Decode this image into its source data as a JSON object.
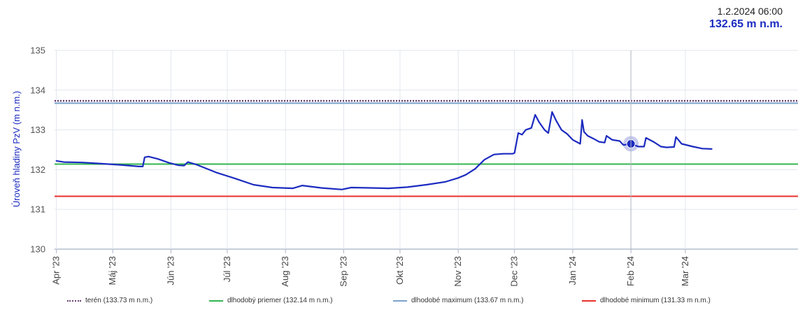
{
  "readout": {
    "date": "1.2.2024 06:00",
    "value": "132.65 m n.m."
  },
  "chart_data": {
    "type": "line",
    "title": "",
    "xlabel": "",
    "ylabel": "Úroveň hladiny PzV (m n.m.)",
    "ylim": [
      130,
      135
    ],
    "yticks": [
      130,
      131,
      132,
      133,
      134,
      135
    ],
    "xlim": [
      "2023-03-31",
      "2024-04-30"
    ],
    "x_ticks": [
      {
        "date": "2023-04-01",
        "label": "Apr '23"
      },
      {
        "date": "2023-05-01",
        "label": "Máj '23"
      },
      {
        "date": "2023-06-01",
        "label": "Jún '23"
      },
      {
        "date": "2023-07-01",
        "label": "Júl '23"
      },
      {
        "date": "2023-08-01",
        "label": "Aug '23"
      },
      {
        "date": "2023-09-01",
        "label": "Sep '23"
      },
      {
        "date": "2023-10-01",
        "label": "Okt '23"
      },
      {
        "date": "2023-11-01",
        "label": "Nov '23"
      },
      {
        "date": "2023-12-01",
        "label": "Dec '23"
      },
      {
        "date": "2024-01-01",
        "label": "Jan '24"
      },
      {
        "date": "2024-02-01",
        "label": "Feb '24"
      },
      {
        "date": "2024-03-01",
        "label": "Mar '24"
      }
    ],
    "grid": true,
    "reference_lines": [
      {
        "name": "terén (133.73 m n.m.)",
        "value": 133.73,
        "color": "#6a3f72",
        "style": "dotted"
      },
      {
        "name": "dlhodobý priemer (132.14 m n.m.)",
        "value": 132.14,
        "color": "#33b54f",
        "style": "solid"
      },
      {
        "name": "dlhodobé maximum (133.67 m n.m.)",
        "value": 133.67,
        "color": "#7aa3cc",
        "style": "solid"
      },
      {
        "name": "dlhodobé minimum (131.33 m n.m.)",
        "value": 131.33,
        "color": "#e8312b",
        "style": "solid"
      }
    ],
    "series": [
      {
        "color": "#1c2bc0",
        "x": [
          "2023-04-01",
          "2023-04-05",
          "2023-04-15",
          "2023-04-25",
          "2023-05-05",
          "2023-05-15",
          "2023-05-17",
          "2023-05-18",
          "2023-05-20",
          "2023-05-25",
          "2023-05-31",
          "2023-06-05",
          "2023-06-08",
          "2023-06-10",
          "2023-06-15",
          "2023-06-25",
          "2023-07-05",
          "2023-07-15",
          "2023-07-25",
          "2023-08-05",
          "2023-08-10",
          "2023-08-20",
          "2023-08-31",
          "2023-09-05",
          "2023-09-15",
          "2023-09-25",
          "2023-10-05",
          "2023-10-15",
          "2023-10-25",
          "2023-11-01",
          "2023-11-05",
          "2023-11-10",
          "2023-11-15",
          "2023-11-20",
          "2023-11-25",
          "2023-11-30",
          "2023-12-01",
          "2023-12-03",
          "2023-12-05",
          "2023-12-07",
          "2023-12-10",
          "2023-12-12",
          "2023-12-14",
          "2023-12-17",
          "2023-12-19",
          "2023-12-21",
          "2023-12-23",
          "2023-12-26",
          "2023-12-29",
          "2024-01-01",
          "2024-01-05",
          "2024-01-06",
          "2024-01-07",
          "2024-01-09",
          "2024-01-12",
          "2024-01-15",
          "2024-01-18",
          "2024-01-19",
          "2024-01-22",
          "2024-01-26",
          "2024-01-28",
          "2024-02-01",
          "2024-02-05",
          "2024-02-08",
          "2024-02-09",
          "2024-02-13",
          "2024-02-17",
          "2024-02-20",
          "2024-02-24",
          "2024-02-25",
          "2024-02-28",
          "2024-03-05",
          "2024-03-10",
          "2024-03-15"
        ],
        "values": [
          132.22,
          132.19,
          132.18,
          132.15,
          132.12,
          132.08,
          132.08,
          132.31,
          132.33,
          132.27,
          132.17,
          132.11,
          132.1,
          132.19,
          132.12,
          131.93,
          131.78,
          131.62,
          131.55,
          131.53,
          131.6,
          131.54,
          131.5,
          131.55,
          131.54,
          131.53,
          131.56,
          131.62,
          131.69,
          131.79,
          131.87,
          132.02,
          132.25,
          132.38,
          132.4,
          132.4,
          132.42,
          132.92,
          132.88,
          133.0,
          133.05,
          133.38,
          133.2,
          133.0,
          132.92,
          133.45,
          133.25,
          133.0,
          132.9,
          132.75,
          132.65,
          133.25,
          132.95,
          132.85,
          132.78,
          132.7,
          132.68,
          132.85,
          132.75,
          132.72,
          132.62,
          132.65,
          132.58,
          132.58,
          132.8,
          132.7,
          132.58,
          132.56,
          132.57,
          132.82,
          132.65,
          132.58,
          132.53,
          132.52
        ]
      }
    ],
    "highlight_point": {
      "x": "2024-02-01",
      "y": 132.65
    }
  }
}
